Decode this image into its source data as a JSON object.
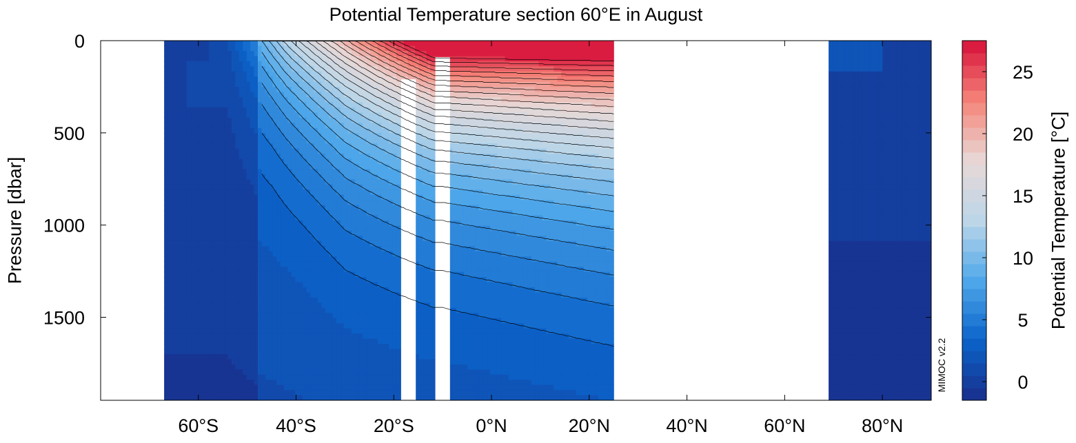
{
  "chart_data": {
    "type": "heatmap",
    "title": "Potential Temperature section 60°E in August",
    "xlabel": "",
    "ylabel": "Pressure [dbar]",
    "colorbar_label": "Potential Temperature [°C]",
    "watermark": "MIMOC v2.2",
    "xlim": [
      -80,
      90
    ],
    "ylim": [
      0,
      1950
    ],
    "y_inverted": true,
    "xticks": [
      -60,
      -40,
      -20,
      0,
      20,
      40,
      60,
      80
    ],
    "xtick_labels": [
      "60°S",
      "40°S",
      "20°S",
      "0°N",
      "20°N",
      "40°N",
      "60°N",
      "80°N"
    ],
    "yticks": [
      0,
      500,
      1000,
      1500
    ],
    "ytick_labels": [
      "0",
      "500",
      "1000",
      "1500"
    ],
    "colorbar_range": [
      -1.5,
      27.5
    ],
    "colorbar_step": 1,
    "colorbar_ticks": [
      0,
      5,
      10,
      15,
      20,
      25
    ],
    "colorbar_tick_labels": [
      "0",
      "5",
      "10",
      "15",
      "20",
      "25"
    ],
    "colormap": [
      "#1a2f8c",
      "#0b63c9",
      "#4fa8ea",
      "#bcd6e8",
      "#e8d8d6",
      "#f58478",
      "#d6103a"
    ],
    "grid": false,
    "data_extent": {
      "south_ocean_x": [
        -67,
        25
      ],
      "north_ocean_x": [
        69,
        90
      ]
    },
    "approx_isotherm_depths_at_0N": {
      "25": 45,
      "20": 75,
      "15": 170,
      "12": 370,
      "10": 590,
      "8": 840,
      "6": 1150,
      "4": 1500,
      "3": 1800
    },
    "approx_isotherm_depths_at_30S": {
      "15": 150,
      "12": 460,
      "10": 700,
      "8": 880,
      "6": 1050,
      "4": 1380,
      "3": 1850
    }
  }
}
